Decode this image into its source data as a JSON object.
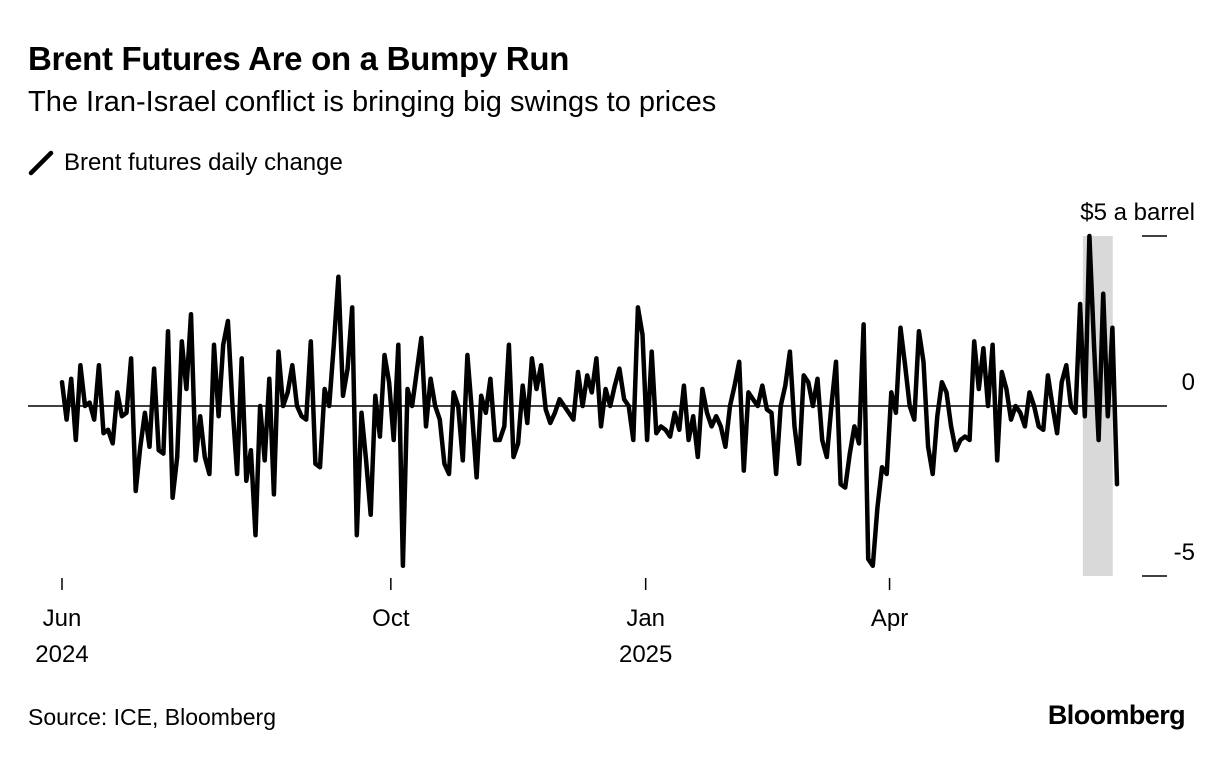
{
  "header": {
    "title": "Brent Futures Are on a Bumpy Run",
    "subtitle": "The Iran-Israel conflict is bringing big swings to prices"
  },
  "legend": {
    "label": "Brent futures daily change"
  },
  "footer": {
    "source": "Source: ICE, Bloomberg",
    "logo": "Bloomberg"
  },
  "colors": {
    "line": "#000000",
    "highlight": "#d9d9d9",
    "axis": "#000000"
  },
  "chart_data": {
    "type": "line",
    "title": "Brent Futures Are on a Bumpy Run",
    "subtitle": "The Iran-Israel conflict is bringing big swings to prices",
    "xlabel": "",
    "ylabel": "",
    "ylim": [
      -5,
      5
    ],
    "yticks": [
      {
        "value": 5,
        "label": "$5 a barrel"
      },
      {
        "value": 0,
        "label": "0"
      },
      {
        "value": -5,
        "label": "-5"
      }
    ],
    "xticks": [
      {
        "date": "2024-06-03",
        "label": "Jun",
        "year": "2024"
      },
      {
        "date": "2024-10-01",
        "label": "Oct",
        "year": ""
      },
      {
        "date": "2025-01-02",
        "label": "Jan",
        "year": "2025"
      },
      {
        "date": "2025-04-01",
        "label": "Apr",
        "year": ""
      }
    ],
    "xlim": [
      "2024-06-03",
      "2025-06-23"
    ],
    "highlight_range": [
      "2025-06-12",
      "2025-06-20"
    ],
    "grid": false,
    "legend_position": "top-left",
    "series": [
      {
        "name": "Brent futures daily change",
        "values": [
          0.7,
          -0.4,
          0.8,
          -1.0,
          1.2,
          0.0,
          0.1,
          -0.4,
          1.2,
          -0.8,
          -0.7,
          -1.1,
          0.4,
          -0.3,
          -0.2,
          1.4,
          -2.5,
          -1.2,
          -0.2,
          -1.2,
          1.1,
          -1.3,
          -1.4,
          2.2,
          -2.7,
          -1.5,
          1.9,
          0.5,
          2.7,
          -1.6,
          -0.3,
          -1.5,
          -2.0,
          1.8,
          -0.3,
          1.8,
          2.5,
          0.0,
          -2.0,
          1.4,
          -2.2,
          -1.3,
          -3.8,
          0.0,
          -1.6,
          0.8,
          -2.6,
          1.6,
          0.0,
          0.4,
          1.2,
          0.0,
          -0.3,
          -0.4,
          1.9,
          -1.7,
          -1.8,
          0.5,
          0.0,
          1.8,
          3.8,
          0.3,
          1.1,
          2.9,
          -3.8,
          -0.2,
          -1.6,
          -3.2,
          0.3,
          -0.9,
          1.5,
          0.7,
          -1.0,
          1.8,
          -4.7,
          0.5,
          0.0,
          1.0,
          2.0,
          -0.6,
          0.8,
          0.0,
          -0.4,
          -1.7,
          -2.0,
          0.4,
          0.0,
          -1.6,
          1.5,
          -0.2,
          -2.1,
          0.3,
          -0.2,
          0.8,
          -1.0,
          -1.0,
          -0.6,
          1.8,
          -1.5,
          -1.1,
          0.6,
          -0.5,
          1.4,
          0.5,
          1.2,
          -0.1,
          -0.5,
          -0.2,
          0.2,
          0.0,
          -0.2,
          -0.4,
          1.0,
          0.0,
          0.9,
          0.4,
          1.4,
          -0.6,
          0.5,
          0.0,
          0.6,
          1.1,
          0.2,
          0.0,
          -1.0,
          2.9,
          2.1,
          -1.0,
          1.6,
          -0.8,
          -0.6,
          -0.7,
          -0.9,
          -0.2,
          -0.7,
          0.6,
          -1.0,
          -0.3,
          -1.5,
          0.5,
          -0.2,
          -0.6,
          -0.3,
          -0.6,
          -1.2,
          0.0,
          0.6,
          1.3,
          -1.9,
          0.4,
          0.2,
          0.0,
          0.6,
          -0.1,
          -0.2,
          -2.0,
          0.0,
          0.6,
          1.6,
          -0.6,
          -1.7,
          0.9,
          0.7,
          0.0,
          0.8,
          -1.0,
          -1.5,
          0.0,
          1.3,
          -2.3,
          -2.4,
          -1.4,
          -0.6,
          -1.1,
          2.4,
          -4.5,
          -4.7,
          -3.0,
          -1.8,
          -2.0,
          0.4,
          -0.2,
          2.3,
          1.2,
          0.0,
          -0.4,
          2.2,
          1.3,
          -1.2,
          -2.0,
          -0.3,
          0.7,
          0.4,
          -0.6,
          -1.3,
          -1.0,
          -0.9,
          -1.0,
          1.9,
          0.5,
          1.7,
          0.0,
          1.8,
          -1.6,
          1.0,
          0.5,
          -0.4,
          0.0,
          -0.2,
          -0.6,
          0.4,
          0.0,
          -0.6,
          -0.7,
          0.9,
          0.0,
          -0.8,
          0.7,
          1.2,
          0.0,
          -0.2,
          3.0,
          -0.3,
          5.0,
          1.8,
          -1.0,
          3.3,
          -0.3,
          2.3,
          -2.3
        ]
      }
    ]
  }
}
